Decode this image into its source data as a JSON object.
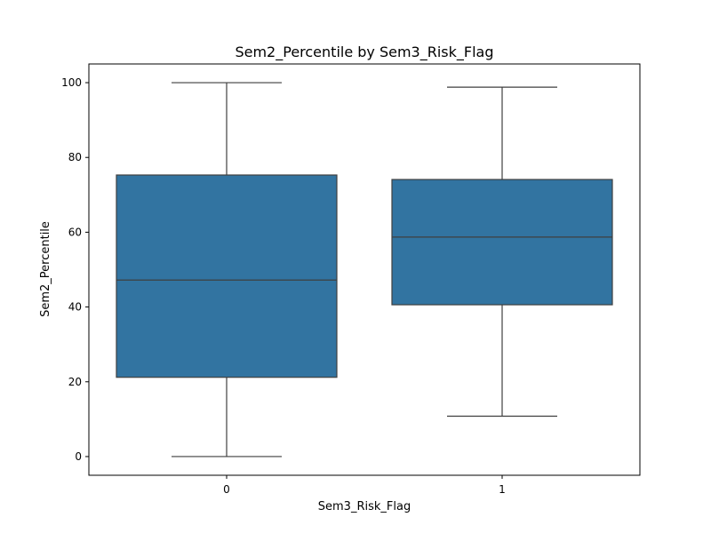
{
  "chart_data": {
    "type": "box",
    "title": "Sem2_Percentile by Sem3_Risk_Flag",
    "xlabel": "Sem3_Risk_Flag",
    "ylabel": "Sem2_Percentile",
    "categories": [
      "0",
      "1"
    ],
    "boxes": [
      {
        "category": "0",
        "whisker_low": 0,
        "q1": 21.2,
        "median": 47.2,
        "q3": 75.3,
        "whisker_high": 100
      },
      {
        "category": "1",
        "whisker_low": 10.8,
        "q1": 40.6,
        "median": 58.7,
        "q3": 74.1,
        "whisker_high": 98.8
      }
    ],
    "y_ticks": [
      0,
      20,
      40,
      60,
      80,
      100
    ],
    "ylim": [
      -5,
      105
    ],
    "grid": false,
    "legend": "none",
    "box_color": "#3274a1",
    "line_color": "#3f3f3f"
  }
}
